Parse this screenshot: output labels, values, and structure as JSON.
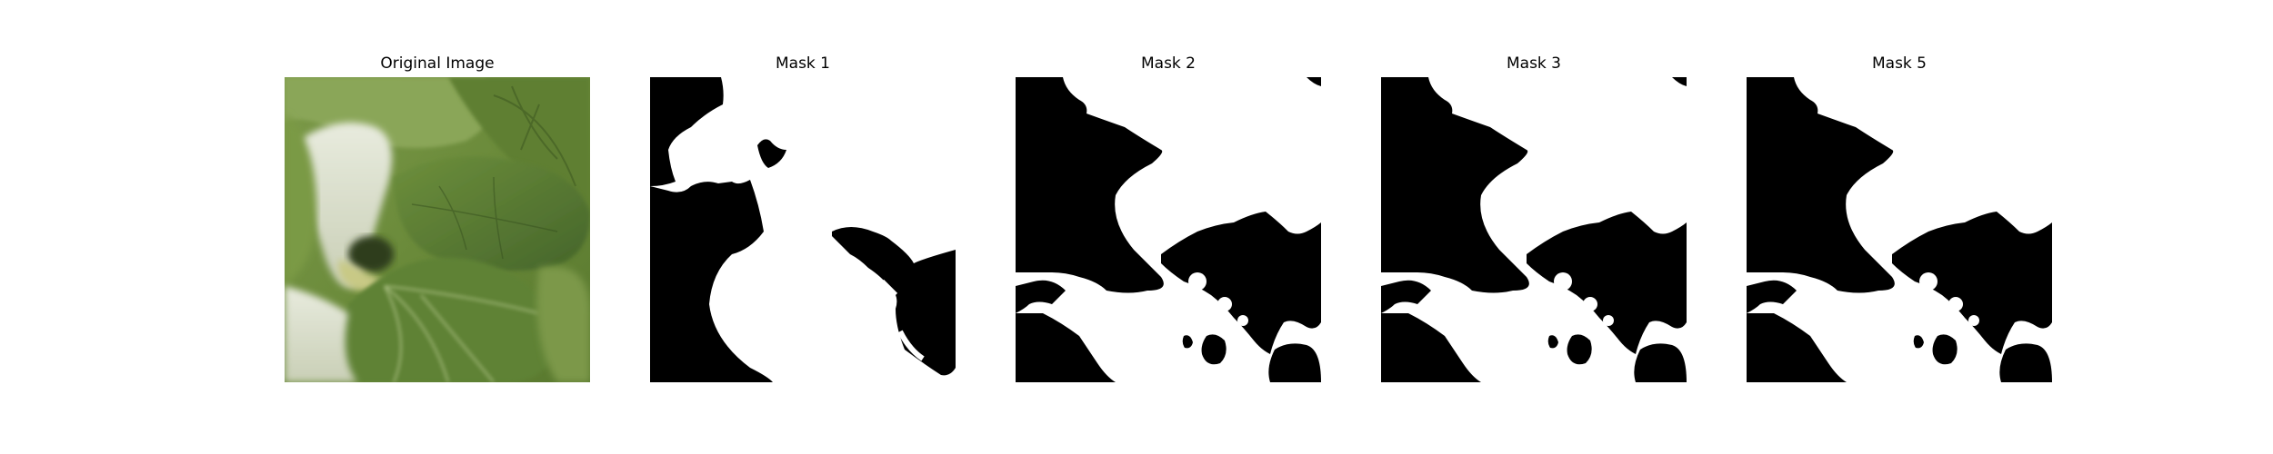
{
  "panels": [
    {
      "title": "Original Image"
    },
    {
      "title": "Mask 1"
    },
    {
      "title": "Mask 2"
    },
    {
      "title": "Mask 3"
    },
    {
      "title": "Mask 5"
    }
  ],
  "colors": {
    "background": "#ffffff",
    "mask_foreground": "#000000",
    "mask_background": "#ffffff",
    "leaf_dark": "#4a6a2c",
    "leaf_mid": "#6f8f3f",
    "leaf_light": "#a9bf7a",
    "stem_pale": "#dfe3cf"
  }
}
